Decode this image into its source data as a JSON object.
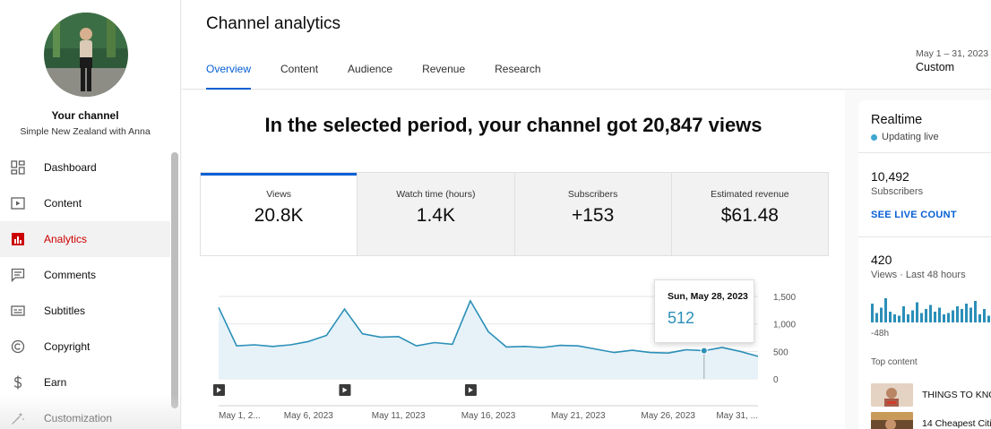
{
  "sidebar": {
    "your_channel": "Your channel",
    "channel_name": "Simple New Zealand with Anna",
    "items": [
      {
        "label": "Dashboard",
        "icon": "dashboard-icon"
      },
      {
        "label": "Content",
        "icon": "content-icon"
      },
      {
        "label": "Analytics",
        "icon": "analytics-icon",
        "active": true
      },
      {
        "label": "Comments",
        "icon": "comments-icon"
      },
      {
        "label": "Subtitles",
        "icon": "subtitles-icon"
      },
      {
        "label": "Copyright",
        "icon": "copyright-icon"
      },
      {
        "label": "Earn",
        "icon": "earn-icon"
      },
      {
        "label": "Customization",
        "icon": "customization-icon"
      }
    ]
  },
  "header": {
    "title": "Channel analytics",
    "tabs": [
      "Overview",
      "Content",
      "Audience",
      "Revenue",
      "Research"
    ],
    "active_tab": "Overview",
    "date_range": "May 1 – 31, 2023",
    "date_preset": "Custom"
  },
  "overview": {
    "headline": "In the selected period, your channel got 20,847 views",
    "metrics": [
      {
        "label": "Views",
        "value": "20.8K"
      },
      {
        "label": "Watch time (hours)",
        "value": "1.4K"
      },
      {
        "label": "Subscribers",
        "value": "+153"
      },
      {
        "label": "Estimated revenue",
        "value": "$61.48"
      }
    ],
    "tooltip": {
      "date": "Sun, May 28, 2023",
      "value": "512"
    }
  },
  "chart_data": {
    "type": "area",
    "title": "",
    "xlabel": "",
    "ylabel": "",
    "x": [
      "May 1",
      "May 2",
      "May 3",
      "May 4",
      "May 5",
      "May 6",
      "May 7",
      "May 8",
      "May 9",
      "May 10",
      "May 11",
      "May 12",
      "May 13",
      "May 14",
      "May 15",
      "May 16",
      "May 17",
      "May 18",
      "May 19",
      "May 20",
      "May 21",
      "May 22",
      "May 23",
      "May 24",
      "May 25",
      "May 26",
      "May 27",
      "May 28",
      "May 29",
      "May 30",
      "May 31"
    ],
    "series": [
      {
        "values": [
          1300,
          600,
          620,
          590,
          620,
          680,
          790,
          1270,
          820,
          760,
          770,
          600,
          660,
          630,
          1420,
          860,
          580,
          590,
          570,
          610,
          600,
          540,
          480,
          520,
          480,
          470,
          530,
          512,
          570,
          500,
          410
        ]
      }
    ],
    "ylim": [
      0,
      1500
    ],
    "yticks": [
      "1,500",
      "1,000",
      "500",
      "0"
    ],
    "xtick_labels": [
      "May 1, 2...",
      "May 6, 2023",
      "May 11, 2023",
      "May 16, 2023",
      "May 21, 2023",
      "May 26, 2023",
      "May 31, ..."
    ],
    "highlight_index": 27,
    "grid": true,
    "colors": {
      "line": "#2b8fb8",
      "fill": "#e6f2f8",
      "marker": "#2b8fb8"
    }
  },
  "realtime": {
    "title": "Realtime",
    "status": "Updating live",
    "subscribers_value": "10,492",
    "subscribers_label": "Subscribers",
    "live_count_link": "SEE LIVE COUNT",
    "views_value": "420",
    "views_label": "Views · Last 48 hours",
    "bars": [
      0.7,
      0.35,
      0.55,
      0.9,
      0.4,
      0.3,
      0.25,
      0.6,
      0.3,
      0.45,
      0.75,
      0.35,
      0.5,
      0.65,
      0.4,
      0.55,
      0.3,
      0.35,
      0.45,
      0.6,
      0.5,
      0.7,
      0.55,
      0.8,
      0.3,
      0.5,
      0.25
    ],
    "axis_label": "-48h",
    "top_content_label": "Top content",
    "top_content": [
      "THINGS TO KNO",
      "14 Cheapest Citi"
    ]
  }
}
